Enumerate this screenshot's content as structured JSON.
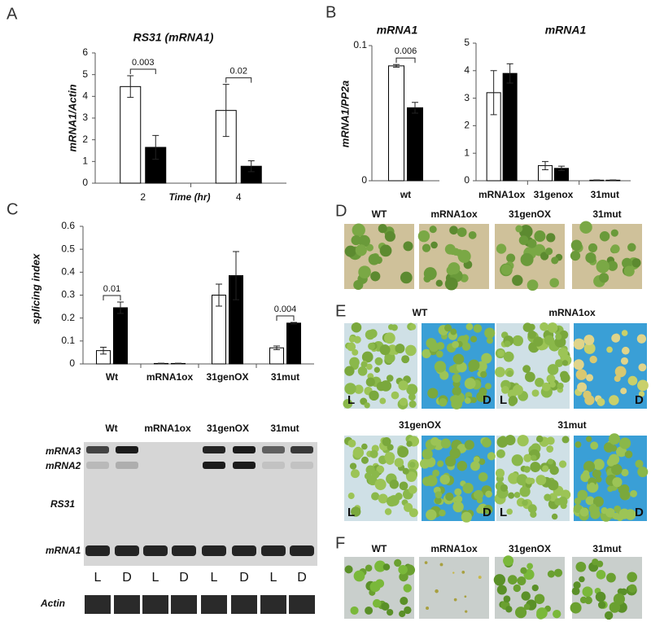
{
  "chart_data": [
    {
      "type": "bar",
      "title": "RS31 (mRNA1)",
      "y_label": "mRNA1/Actin",
      "x_label": "Time (hr)",
      "categories": [
        "2",
        "4"
      ],
      "series": [
        {
          "color": "#ffffff",
          "values": [
            4.45,
            3.35
          ],
          "errors": [
            0.5,
            1.2
          ]
        },
        {
          "color": "#000000",
          "values": [
            1.65,
            0.78
          ],
          "errors": [
            0.55,
            0.25
          ]
        }
      ],
      "ylim": [
        0,
        6
      ],
      "yticks": [
        0,
        1,
        2,
        3,
        4,
        5,
        6
      ],
      "annotations": [
        "0.003",
        "0.02"
      ]
    },
    {
      "type": "bar",
      "title": "mRNA1",
      "y_label": "mRNA1/PP2a",
      "categories": [
        "wt"
      ],
      "series": [
        {
          "color": "#ffffff",
          "values": [
            0.085
          ],
          "errors": [
            0.001
          ]
        },
        {
          "color": "#000000",
          "values": [
            0.054
          ],
          "errors": [
            0.004
          ]
        }
      ],
      "ylim": [
        0,
        0.1
      ],
      "yticks": [
        0,
        0.1
      ],
      "annotations": [
        "0.006"
      ]
    },
    {
      "type": "bar",
      "title": "mRNA1",
      "categories": [
        "mRNA1ox",
        "31genox",
        "31mut"
      ],
      "series": [
        {
          "color": "#ffffff",
          "values": [
            3.2,
            0.55,
            0.02
          ],
          "errors": [
            0.8,
            0.15,
            0.01
          ]
        },
        {
          "color": "#000000",
          "values": [
            3.9,
            0.45,
            0.02
          ],
          "errors": [
            0.35,
            0.08,
            0.01
          ]
        }
      ],
      "ylim": [
        0,
        5
      ],
      "yticks": [
        0,
        1,
        2,
        3,
        4,
        5
      ],
      "annotations": []
    },
    {
      "type": "bar",
      "y_label": "splicing index",
      "categories": [
        "Wt",
        "mRNA1ox",
        "31genOX",
        "31mut"
      ],
      "series": [
        {
          "color": "#ffffff",
          "values": [
            0.058,
            0.002,
            0.3,
            0.07
          ],
          "errors": [
            0.015,
            0.001,
            0.048,
            0.008
          ]
        },
        {
          "color": "#000000",
          "values": [
            0.245,
            0.002,
            0.385,
            0.178
          ],
          "errors": [
            0.025,
            0.001,
            0.105,
            0.003
          ]
        }
      ],
      "ylim": [
        0,
        0.6
      ],
      "yticks": [
        0,
        0.1,
        0.2,
        0.3,
        0.4,
        0.5,
        0.6
      ],
      "annotations": [
        "0.01",
        "0.004"
      ]
    }
  ],
  "panels": {
    "letters": [
      "A",
      "B",
      "C",
      "D",
      "E",
      "F"
    ],
    "gel": {
      "lanes": [
        "Wt",
        "mRNA1ox",
        "31genOX",
        "31mut"
      ],
      "bands": [
        "mRNA3",
        "mRNA2",
        "RS31",
        "mRNA1"
      ],
      "conditions": [
        "L",
        "D",
        "L",
        "D",
        "L",
        "D",
        "L",
        "D"
      ],
      "loading": "Actin"
    },
    "d": {
      "labels": [
        "WT",
        "mRNA1ox",
        "31genOX",
        "31mut"
      ]
    },
    "e": {
      "labels": [
        "WT",
        "mRNA1ox",
        "31genOX",
        "31mut"
      ],
      "corners": [
        "L",
        "D",
        "L",
        "D",
        "L",
        "D",
        "L",
        "D"
      ]
    },
    "f": {
      "labels": [
        "WT",
        "mRNA1ox",
        "31genOX",
        "31mut"
      ]
    }
  }
}
